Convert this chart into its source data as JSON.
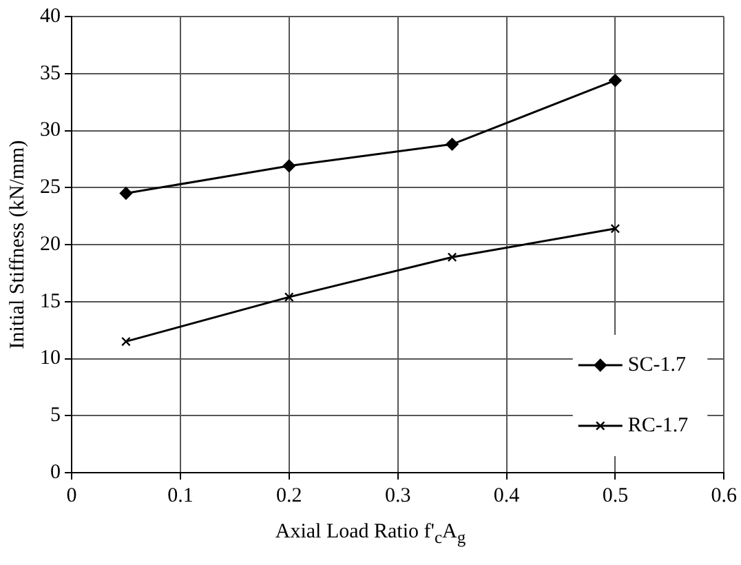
{
  "chart_data": {
    "type": "line",
    "xlabel": "Axial Load Ratio f'$_{c}$A$_{g}$",
    "ylabel": "Initial Stiffness (kN/mm)",
    "x": [
      0.05,
      0.2,
      0.35,
      0.5
    ],
    "series": [
      {
        "name": "SC-1.7",
        "color": "#000000",
        "marker": "diamond",
        "values": [
          24.5,
          26.9,
          28.8,
          34.4
        ]
      },
      {
        "name": "RC-1.7",
        "color": "#000000",
        "marker": "cross",
        "values": [
          11.5,
          15.4,
          18.9,
          21.4
        ]
      }
    ],
    "xlim": [
      0,
      0.6
    ],
    "xticks": [
      0,
      0.1,
      0.2,
      0.3,
      0.4,
      0.5,
      0.6
    ],
    "ylim": [
      0,
      40
    ],
    "yticks": [
      0,
      5,
      10,
      15,
      20,
      25,
      30,
      35,
      40
    ],
    "grid": true,
    "legend": "bottom right",
    "line_style": "solid"
  }
}
